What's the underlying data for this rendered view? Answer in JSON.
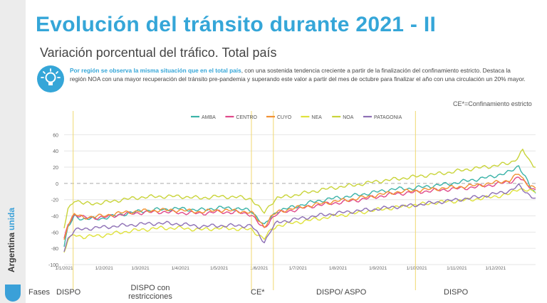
{
  "title": "Evolución del tránsito durante 2021 - II",
  "subtitle": "Variación porcentual del tráfico. Total país",
  "note": {
    "highlight": "Por región se observa la misma situación que en el total país",
    "text": ", con una sostenida tendencia creciente a partir de la finalización del confinamiento estricto. Destaca la región NOA con una mayor recuperación del tránsito pre-pandemia y superando este valor a partir del mes de octubre para finalizar el año con una circulación un 20% mayor."
  },
  "ce_note": "CE*=Confinamiento estricto",
  "brand": {
    "name": "Argentina",
    "name2": "unida"
  },
  "icons": {
    "bulb": "lightbulb-icon",
    "shield": "argentina-shield-icon"
  },
  "colors": {
    "accent": "#35a6d8"
  },
  "phases": {
    "label": "Fases",
    "items": [
      "DISPO",
      "DISPO con restricciones",
      "CE*",
      "DISPO/ ASPO",
      "DISPO"
    ]
  },
  "chart_data": {
    "type": "line",
    "x_ticks": [
      "1/1/2021",
      "1/2/2021",
      "1/3/2021",
      "1/4/2021",
      "1/5/2021",
      "1/6/2021",
      "1/7/2021",
      "1/8/2021",
      "1/9/2021",
      "1/10/2021",
      "1/11/2021",
      "1/12/2021"
    ],
    "y_ticks": [
      60,
      40,
      20,
      0,
      -20,
      -40,
      -60,
      -80,
      -100
    ],
    "ylim": [
      -100,
      70
    ],
    "xlim_days": [
      0,
      365
    ],
    "phase_lines_days": [
      7,
      145,
      162,
      272
    ],
    "series": [
      {
        "name": "AMBA",
        "color": "#3bb3a8",
        "points": [
          [
            0,
            -78
          ],
          [
            3,
            -55
          ],
          [
            8,
            -40
          ],
          [
            15,
            -44
          ],
          [
            30,
            -43
          ],
          [
            45,
            -38
          ],
          [
            60,
            -34
          ],
          [
            75,
            -32
          ],
          [
            90,
            -31
          ],
          [
            105,
            -33
          ],
          [
            120,
            -30
          ],
          [
            135,
            -31
          ],
          [
            145,
            -34
          ],
          [
            152,
            -46
          ],
          [
            155,
            -52
          ],
          [
            160,
            -42
          ],
          [
            165,
            -34
          ],
          [
            180,
            -28
          ],
          [
            195,
            -22
          ],
          [
            210,
            -18
          ],
          [
            225,
            -15
          ],
          [
            240,
            -11
          ],
          [
            255,
            -7
          ],
          [
            270,
            -6
          ],
          [
            285,
            -3
          ],
          [
            300,
            0
          ],
          [
            315,
            4
          ],
          [
            330,
            8
          ],
          [
            345,
            14
          ],
          [
            352,
            22
          ],
          [
            357,
            8
          ],
          [
            362,
            -8
          ],
          [
            365,
            -12
          ]
        ]
      },
      {
        "name": "CENTRO",
        "color": "#e0498a",
        "points": [
          [
            0,
            -70
          ],
          [
            3,
            -50
          ],
          [
            8,
            -38
          ],
          [
            15,
            -42
          ],
          [
            30,
            -42
          ],
          [
            45,
            -38
          ],
          [
            60,
            -36
          ],
          [
            75,
            -35
          ],
          [
            90,
            -36
          ],
          [
            105,
            -37
          ],
          [
            120,
            -35
          ],
          [
            135,
            -36
          ],
          [
            145,
            -38
          ],
          [
            152,
            -52
          ],
          [
            155,
            -56
          ],
          [
            160,
            -44
          ],
          [
            165,
            -37
          ],
          [
            180,
            -32
          ],
          [
            195,
            -27
          ],
          [
            210,
            -24
          ],
          [
            225,
            -21
          ],
          [
            240,
            -17
          ],
          [
            255,
            -13
          ],
          [
            270,
            -11
          ],
          [
            285,
            -9
          ],
          [
            300,
            -7
          ],
          [
            315,
            -5
          ],
          [
            330,
            -2
          ],
          [
            345,
            2
          ],
          [
            352,
            8
          ],
          [
            357,
            0
          ],
          [
            362,
            -6
          ],
          [
            365,
            -8
          ]
        ]
      },
      {
        "name": "CUYO",
        "color": "#f29234",
        "points": [
          [
            0,
            -70
          ],
          [
            3,
            -50
          ],
          [
            8,
            -38
          ],
          [
            15,
            -42
          ],
          [
            30,
            -40
          ],
          [
            45,
            -36
          ],
          [
            60,
            -34
          ],
          [
            75,
            -33
          ],
          [
            90,
            -33
          ],
          [
            105,
            -35
          ],
          [
            120,
            -33
          ],
          [
            135,
            -34
          ],
          [
            145,
            -36
          ],
          [
            152,
            -48
          ],
          [
            155,
            -53
          ],
          [
            160,
            -42
          ],
          [
            165,
            -35
          ],
          [
            180,
            -30
          ],
          [
            195,
            -26
          ],
          [
            210,
            -22
          ],
          [
            225,
            -19
          ],
          [
            240,
            -15
          ],
          [
            255,
            -11
          ],
          [
            270,
            -9
          ],
          [
            285,
            -7
          ],
          [
            300,
            -5
          ],
          [
            315,
            -3
          ],
          [
            330,
            0
          ],
          [
            345,
            4
          ],
          [
            352,
            12
          ],
          [
            357,
            2
          ],
          [
            362,
            -4
          ],
          [
            365,
            -6
          ]
        ]
      },
      {
        "name": "NEA",
        "color": "#dfe23c",
        "points": [
          [
            0,
            -85
          ],
          [
            3,
            -70
          ],
          [
            8,
            -63
          ],
          [
            15,
            -66
          ],
          [
            30,
            -64
          ],
          [
            45,
            -60
          ],
          [
            60,
            -57
          ],
          [
            75,
            -55
          ],
          [
            90,
            -55
          ],
          [
            105,
            -57
          ],
          [
            120,
            -55
          ],
          [
            135,
            -56
          ],
          [
            145,
            -57
          ],
          [
            152,
            -65
          ],
          [
            155,
            -68
          ],
          [
            160,
            -58
          ],
          [
            165,
            -52
          ],
          [
            180,
            -48
          ],
          [
            195,
            -44
          ],
          [
            210,
            -40
          ],
          [
            225,
            -37
          ],
          [
            240,
            -33
          ],
          [
            255,
            -30
          ],
          [
            270,
            -27
          ],
          [
            285,
            -24
          ],
          [
            300,
            -22
          ],
          [
            315,
            -20
          ],
          [
            330,
            -17
          ],
          [
            345,
            -13
          ],
          [
            352,
            -6
          ],
          [
            357,
            -8
          ],
          [
            362,
            -10
          ],
          [
            365,
            -11
          ]
        ]
      },
      {
        "name": "NOA",
        "color": "#c9d43a",
        "points": [
          [
            0,
            -55
          ],
          [
            3,
            -32
          ],
          [
            8,
            -20
          ],
          [
            15,
            -25
          ],
          [
            30,
            -24
          ],
          [
            45,
            -20
          ],
          [
            60,
            -17
          ],
          [
            75,
            -16
          ],
          [
            90,
            -16
          ],
          [
            105,
            -18
          ],
          [
            120,
            -16
          ],
          [
            135,
            -17
          ],
          [
            145,
            -19
          ],
          [
            152,
            -32
          ],
          [
            155,
            -36
          ],
          [
            160,
            -25
          ],
          [
            165,
            -18
          ],
          [
            180,
            -14
          ],
          [
            195,
            -9
          ],
          [
            210,
            -5
          ],
          [
            225,
            -2
          ],
          [
            240,
            2
          ],
          [
            255,
            5
          ],
          [
            270,
            8
          ],
          [
            285,
            11
          ],
          [
            300,
            14
          ],
          [
            315,
            18
          ],
          [
            330,
            21
          ],
          [
            345,
            25
          ],
          [
            352,
            33
          ],
          [
            355,
            41
          ],
          [
            360,
            28
          ],
          [
            365,
            20
          ]
        ]
      },
      {
        "name": "PATAGONIA",
        "color": "#8e70b5",
        "points": [
          [
            0,
            -82
          ],
          [
            3,
            -68
          ],
          [
            8,
            -58
          ],
          [
            15,
            -56
          ],
          [
            30,
            -54
          ],
          [
            45,
            -52
          ],
          [
            60,
            -50
          ],
          [
            75,
            -49
          ],
          [
            90,
            -50
          ],
          [
            105,
            -53
          ],
          [
            120,
            -52
          ],
          [
            135,
            -52
          ],
          [
            145,
            -52
          ],
          [
            152,
            -66
          ],
          [
            155,
            -72
          ],
          [
            160,
            -58
          ],
          [
            165,
            -48
          ],
          [
            180,
            -44
          ],
          [
            195,
            -40
          ],
          [
            210,
            -37
          ],
          [
            225,
            -34
          ],
          [
            240,
            -32
          ],
          [
            255,
            -29
          ],
          [
            270,
            -27
          ],
          [
            285,
            -24
          ],
          [
            300,
            -21
          ],
          [
            315,
            -18
          ],
          [
            330,
            -14
          ],
          [
            345,
            -9
          ],
          [
            352,
            -3
          ],
          [
            357,
            -10
          ],
          [
            362,
            -16
          ],
          [
            365,
            -18
          ]
        ]
      }
    ]
  }
}
